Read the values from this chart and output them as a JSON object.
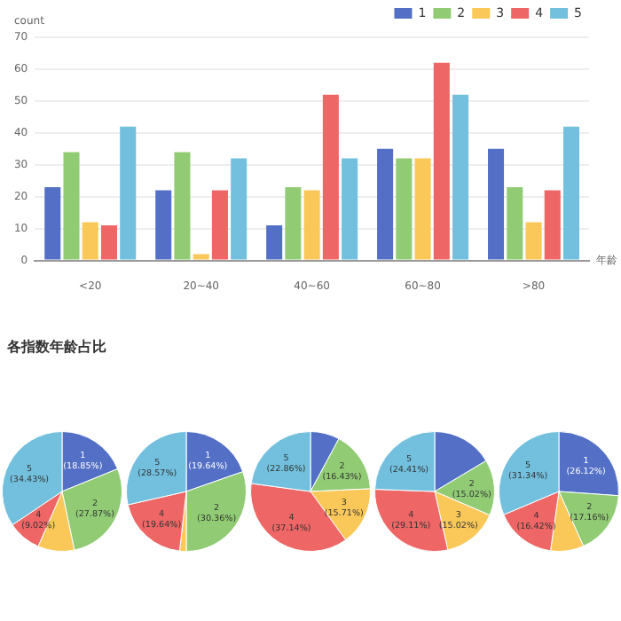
{
  "chart_data": [
    {
      "type": "bar",
      "categories": [
        "<20",
        "20~40",
        "40~60",
        "60~80",
        ">80"
      ],
      "xlabel": "年龄",
      "ylabel": "count",
      "ylim": [
        0,
        70
      ],
      "yticks": [
        0,
        10,
        20,
        30,
        40,
        50,
        60,
        70
      ],
      "grid": "y",
      "legend": "top right",
      "series": [
        {
          "name": "1",
          "color": "#5470c6",
          "values": [
            23,
            22,
            11,
            35,
            35
          ]
        },
        {
          "name": "2",
          "color": "#91cc75",
          "values": [
            34,
            34,
            23,
            32,
            23
          ]
        },
        {
          "name": "3",
          "color": "#fac858",
          "values": [
            12,
            2,
            22,
            32,
            12
          ]
        },
        {
          "name": "4",
          "color": "#ee6666",
          "values": [
            11,
            22,
            52,
            62,
            22
          ]
        },
        {
          "name": "5",
          "color": "#73c0de",
          "values": [
            42,
            32,
            32,
            52,
            42
          ]
        }
      ]
    },
    {
      "type": "pie",
      "title": "各指数年龄占比",
      "categories": [
        "1",
        "2",
        null,
        "4",
        "5"
      ],
      "values": [
        18.85,
        27.87,
        9.84,
        9.02,
        34.43
      ],
      "value_labels": [
        "(18.85%)",
        "(27.87%)",
        null,
        "(9.02%)",
        "(34.43%)"
      ],
      "colors": [
        "#5470c6",
        "#91cc75",
        "#fac858",
        "#ee6666",
        "#73c0de"
      ]
    },
    {
      "type": "pie",
      "categories": [
        "1",
        "2",
        null,
        "4",
        "5"
      ],
      "values": [
        19.64,
        30.36,
        1.79,
        19.64,
        28.57
      ],
      "value_labels": [
        "(19.64%)",
        "(30.36%)",
        null,
        "(19.64%)",
        "(28.57%)"
      ],
      "colors": [
        "#5470c6",
        "#91cc75",
        "#fac858",
        "#ee6666",
        "#73c0de"
      ]
    },
    {
      "type": "pie",
      "categories": [
        null,
        "2",
        "3",
        "4",
        "5"
      ],
      "values": [
        7.86,
        16.43,
        15.71,
        37.14,
        22.86
      ],
      "value_labels": [
        null,
        "(16.43%)",
        "(15.71%)",
        "(37.14%)",
        "(22.86%)"
      ],
      "colors": [
        "#5470c6",
        "#91cc75",
        "#fac858",
        "#ee6666",
        "#73c0de"
      ]
    },
    {
      "type": "pie",
      "categories": [
        null,
        "2",
        "3",
        "4",
        "5"
      ],
      "values": [
        16.43,
        15.02,
        15.02,
        29.11,
        24.41
      ],
      "value_labels": [
        null,
        "(15.02%)",
        "(15.02%)",
        "(29.11%)",
        "(24.41%)"
      ],
      "colors": [
        "#5470c6",
        "#91cc75",
        "#fac858",
        "#ee6666",
        "#73c0de"
      ]
    },
    {
      "type": "pie",
      "categories": [
        "1",
        "2",
        null,
        "4",
        "5"
      ],
      "values": [
        26.12,
        17.16,
        8.96,
        16.42,
        31.34
      ],
      "value_labels": [
        "(26.12%)",
        "(17.16%)",
        null,
        "(16.42%)",
        "(31.34%)"
      ],
      "colors": [
        "#5470c6",
        "#91cc75",
        "#fac858",
        "#ee6666",
        "#73c0de"
      ]
    }
  ]
}
